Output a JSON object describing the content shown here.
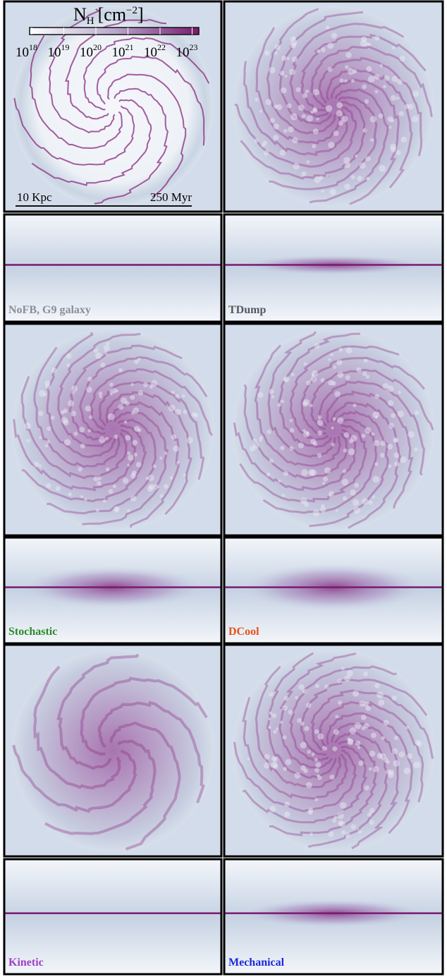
{
  "colorbar": {
    "quantity": "N",
    "subscript": "H",
    "unit": "[cm",
    "exponent": "−2",
    "close": "]",
    "tick_base": "10",
    "tick_exponents": [
      "18",
      "19",
      "20",
      "21",
      "22",
      "23"
    ]
  },
  "scale_bar": {
    "length": "10 Kpc",
    "time": "250 Myr"
  },
  "panels": [
    {
      "label": "NoFB, G9 galaxy",
      "color": "#8a8e96"
    },
    {
      "label": "TDump",
      "color": "#55585e"
    },
    {
      "label": "Stochastic",
      "color": "#2a8a2a"
    },
    {
      "label": "DCool",
      "color": "#e8501a"
    },
    {
      "label": "Kinetic",
      "color": "#a040c8"
    },
    {
      "label": "Mechanical",
      "color": "#1a2ad8"
    }
  ]
}
